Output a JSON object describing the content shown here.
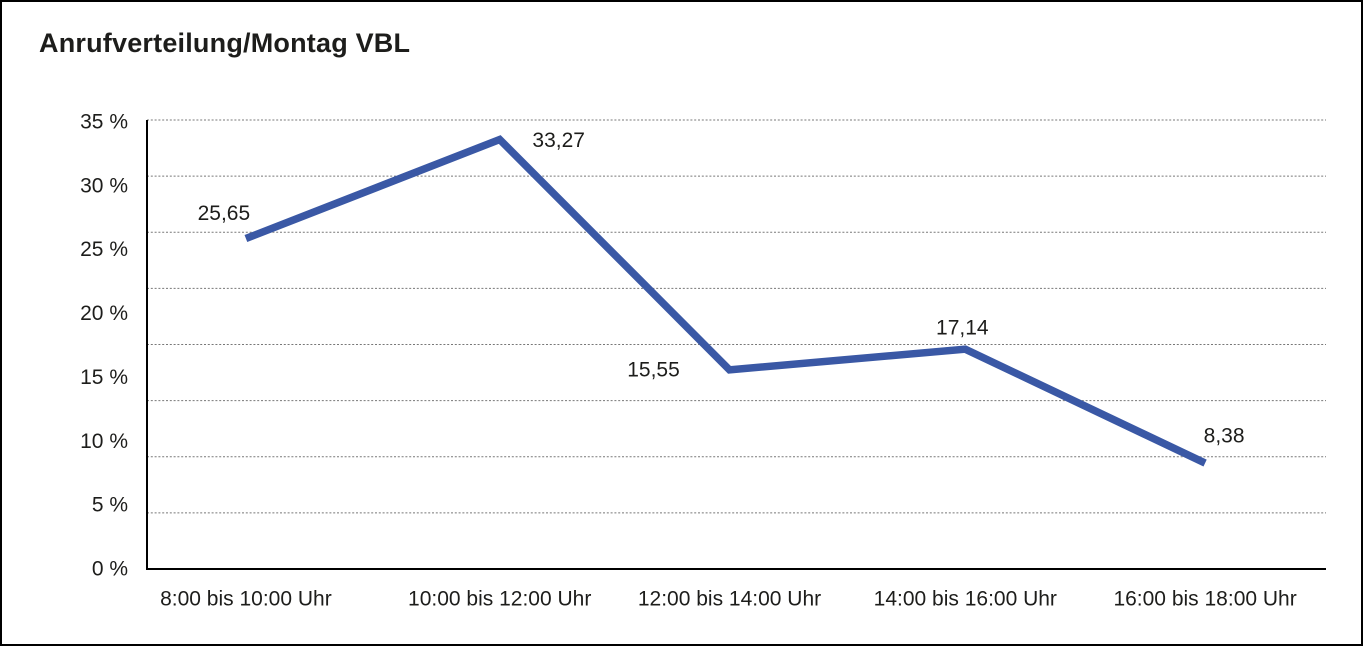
{
  "chart_data": {
    "type": "line",
    "title": "Anrufverteilung/Montag VBL",
    "categories": [
      "8:00 bis 10:00 Uhr",
      "10:00 bis 12:00 Uhr",
      "12:00 bis 14:00 Uhr",
      "14:00 bis 16:00 Uhr",
      "16:00 bis 18:00 Uhr"
    ],
    "values": [
      25.65,
      33.27,
      15.55,
      17.14,
      8.38
    ],
    "data_labels": [
      "25,65",
      "33,27",
      "15,55",
      "17,14",
      "8,38"
    ],
    "y_tick_labels": [
      "0 %",
      "5 %",
      "10 %",
      "15 %",
      "20 %",
      "25 %",
      "30 %",
      "35 %"
    ],
    "ylim": [
      0,
      35
    ],
    "xlabel": "",
    "ylabel": "",
    "grid": "horizontal-dotted",
    "legend": "none",
    "colors": {
      "line": "#3A58A5",
      "text": "#1D1D1B",
      "grid": "#787878",
      "axis": "#000000",
      "background": "#FFFFFF",
      "border": "#000000"
    }
  }
}
